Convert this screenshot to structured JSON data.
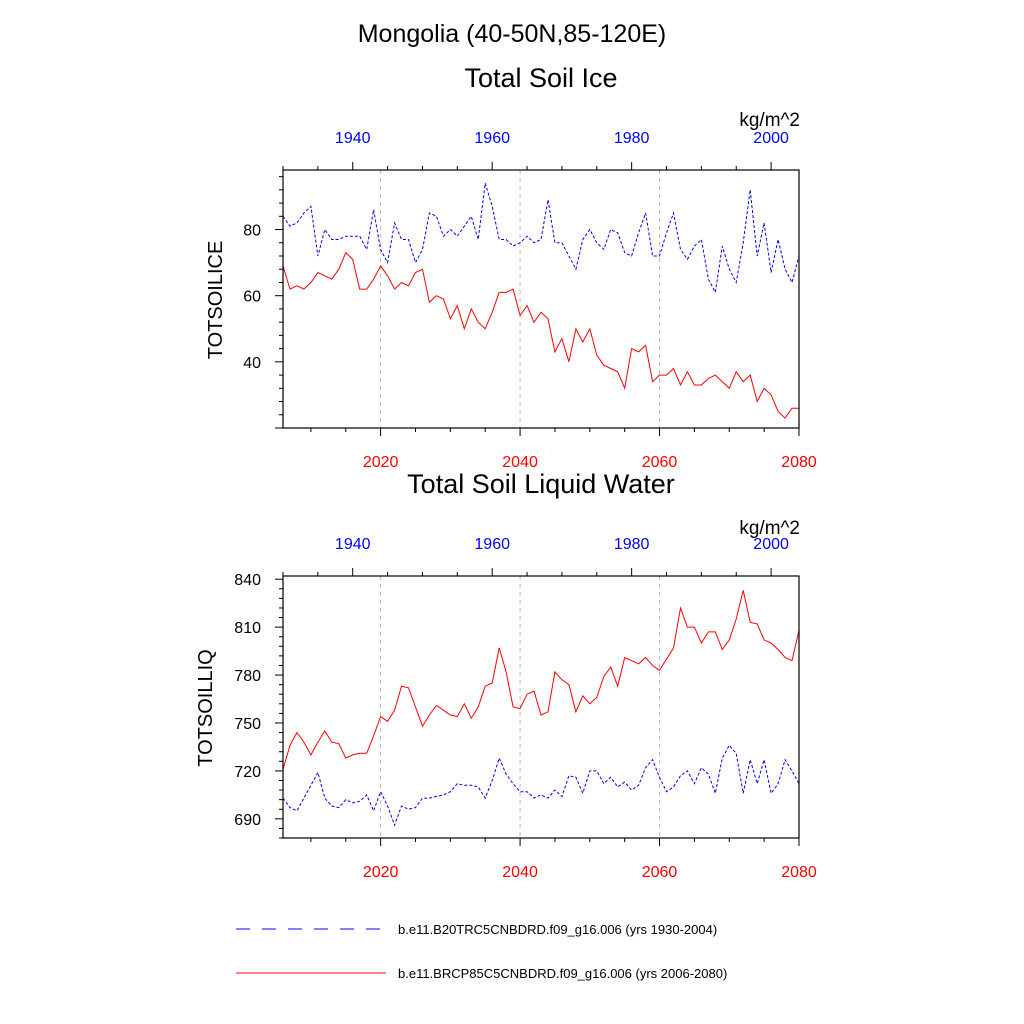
{
  "title": "Mongolia (40-50N,85-120E)",
  "colors": {
    "hist": "#0000ff",
    "future": "#ff0000",
    "axis": "#000000",
    "grid": "#bbbbbb"
  },
  "chart_data": [
    {
      "type": "line",
      "title": "Total Soil Ice",
      "ylabel": "TOTSOILICE",
      "units": "kg/m^2",
      "ylim": [
        20,
        98
      ],
      "yticks": [
        40,
        60,
        80
      ],
      "xlim_future": [
        2006,
        2080
      ],
      "xlim_hist": [
        1930,
        2004
      ],
      "xticks_future": [
        2020,
        2040,
        2060,
        2080
      ],
      "xticks_hist": [
        1940,
        1960,
        1980,
        2000
      ],
      "grid_x": [
        2020,
        2040,
        2060
      ],
      "series": [
        {
          "name": "b.e11.B20TRC5CNBDRD.f09_g16.006 (yrs 1930-2004)",
          "axis": "hist",
          "x_start": 1930,
          "values": [
            84,
            81,
            82,
            85,
            87,
            72,
            80,
            77,
            77,
            78,
            78,
            78,
            74,
            86,
            74,
            70,
            82,
            77,
            77,
            70,
            74,
            85,
            84,
            78,
            80,
            78,
            81,
            84,
            77,
            94,
            87,
            77,
            77,
            75,
            76,
            78,
            76,
            77,
            89,
            76,
            76,
            72,
            68,
            77,
            80,
            76,
            74,
            80,
            79,
            73,
            72,
            79,
            85,
            72,
            72,
            79,
            85,
            74,
            71,
            75,
            77,
            65,
            61,
            75,
            68,
            64,
            76,
            92,
            72,
            82,
            67,
            77,
            68,
            64,
            72
          ]
        },
        {
          "name": "b.e11.BRCP85C5CNBDRD.f09_g16.006 (yrs 2006-2080)",
          "axis": "future",
          "x_start": 2006,
          "values": [
            69,
            62,
            63,
            62,
            64,
            67,
            66,
            65,
            68,
            73,
            71,
            62,
            62,
            65,
            69,
            66,
            62,
            64,
            63,
            67,
            68,
            58,
            60,
            59,
            53,
            57,
            50,
            56,
            52,
            50,
            55,
            61,
            61,
            62,
            54,
            57,
            52,
            55,
            53,
            43,
            47,
            40,
            50,
            46,
            50,
            42,
            39,
            38,
            37,
            32,
            44,
            43,
            45,
            34,
            36,
            36,
            38,
            33,
            37,
            33,
            33,
            35,
            36,
            34,
            32,
            37,
            34,
            36,
            28,
            32,
            30,
            25,
            23,
            26,
            26
          ]
        }
      ]
    },
    {
      "type": "line",
      "title": "Total Soil Liquid Water",
      "ylabel": "TOTSOILLIQ",
      "units": "kg/m^2",
      "ylim": [
        678,
        842
      ],
      "yticks": [
        690,
        720,
        750,
        780,
        810,
        840
      ],
      "xlim_future": [
        2006,
        2080
      ],
      "xlim_hist": [
        1930,
        2004
      ],
      "xticks_future": [
        2020,
        2040,
        2060,
        2080
      ],
      "xticks_hist": [
        1940,
        1960,
        1980,
        2000
      ],
      "grid_x": [
        2020,
        2040,
        2060
      ],
      "series": [
        {
          "name": "b.e11.B20TRC5CNBDRD.f09_g16.006 (yrs 1930-2004)",
          "axis": "hist",
          "x_start": 1930,
          "values": [
            703,
            697,
            695,
            703,
            711,
            719,
            703,
            698,
            697,
            702,
            700,
            701,
            705,
            695,
            707,
            698,
            686,
            698,
            696,
            697,
            703,
            703,
            704,
            705,
            707,
            712,
            711,
            711,
            710,
            703,
            714,
            728,
            718,
            712,
            707,
            707,
            703,
            705,
            703,
            708,
            704,
            717,
            716,
            706,
            720,
            720,
            712,
            716,
            710,
            713,
            708,
            711,
            722,
            727,
            716,
            707,
            710,
            717,
            720,
            712,
            722,
            718,
            706,
            728,
            736,
            731,
            706,
            727,
            712,
            727,
            706,
            712,
            727,
            720,
            712
          ]
        },
        {
          "name": "b.e11.BRCP85C5CNBDRD.f09_g16.006 (yrs 2006-2080)",
          "axis": "future",
          "x_start": 2006,
          "values": [
            721,
            736,
            744,
            738,
            730,
            738,
            745,
            738,
            737,
            728,
            730,
            731,
            731,
            742,
            754,
            751,
            758,
            773,
            772,
            760,
            748,
            755,
            761,
            758,
            755,
            754,
            762,
            753,
            760,
            773,
            775,
            797,
            782,
            760,
            759,
            768,
            770,
            755,
            757,
            782,
            777,
            774,
            757,
            767,
            762,
            766,
            779,
            785,
            773,
            791,
            789,
            787,
            791,
            786,
            783,
            790,
            797,
            822,
            810,
            810,
            800,
            807,
            807,
            796,
            802,
            815,
            833,
            813,
            812,
            802,
            800,
            796,
            791,
            789,
            808
          ]
        }
      ]
    }
  ]
}
